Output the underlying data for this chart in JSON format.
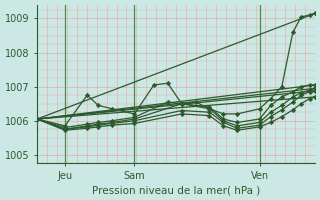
{
  "title": "Pression niveau de la mer( hPa )",
  "bg_color": "#cce8e4",
  "line_color": "#2d5a2d",
  "grid_color_major_v": "#4a8a4a",
  "grid_color_minor": "#e8a8a8",
  "ylim": [
    1004.75,
    1009.4
  ],
  "yticks": [
    1005,
    1006,
    1007,
    1008,
    1009
  ],
  "xlim": [
    0,
    1
  ],
  "xtick_positions": [
    0.1,
    0.35,
    0.8
  ],
  "xtick_labels": [
    "Jeu",
    "Sam",
    "Ven"
  ],
  "vline_positions": [
    0.1,
    0.35,
    0.8
  ],
  "lines": [
    {
      "x": [
        0.0,
        0.1,
        0.18,
        0.22,
        0.27,
        0.35,
        0.42,
        0.47,
        0.52,
        0.57,
        0.62,
        0.67,
        0.72,
        0.8,
        0.84,
        0.88,
        0.92,
        0.95,
        0.98,
        1.0
      ],
      "y": [
        1006.05,
        1005.85,
        1006.75,
        1006.45,
        1006.35,
        1006.2,
        1007.05,
        1007.1,
        1006.5,
        1006.55,
        1006.35,
        1006.2,
        1006.2,
        1006.35,
        1006.65,
        1007.0,
        1008.6,
        1009.05,
        1009.1,
        1009.15
      ]
    },
    {
      "x": [
        0.0,
        0.1,
        0.18,
        0.22,
        0.27,
        0.35,
        0.52,
        0.62,
        0.67,
        0.72,
        0.8,
        0.84,
        0.88,
        0.92,
        0.95,
        0.98,
        1.0
      ],
      "y": [
        1006.05,
        1005.75,
        1005.85,
        1005.9,
        1005.95,
        1006.05,
        1006.5,
        1006.4,
        1006.05,
        1005.95,
        1006.05,
        1006.45,
        1006.7,
        1006.85,
        1007.0,
        1007.05,
        1007.05
      ]
    },
    {
      "x": [
        0.0,
        0.1,
        0.18,
        0.22,
        0.27,
        0.35,
        0.47,
        0.52,
        0.62,
        0.67,
        0.72,
        0.8,
        0.84,
        0.88,
        0.92,
        0.95,
        0.98,
        1.0
      ],
      "y": [
        1006.05,
        1005.8,
        1005.9,
        1005.95,
        1006.0,
        1006.1,
        1006.55,
        1006.5,
        1006.35,
        1006.0,
        1005.85,
        1005.95,
        1006.25,
        1006.45,
        1006.7,
        1006.82,
        1006.9,
        1006.95
      ]
    },
    {
      "x": [
        0.0,
        0.1,
        0.18,
        0.22,
        0.27,
        0.35,
        0.52,
        0.62,
        0.67,
        0.72,
        0.8,
        0.84,
        0.88,
        0.92,
        0.95,
        0.98,
        1.0
      ],
      "y": [
        1006.05,
        1005.75,
        1005.82,
        1005.87,
        1005.92,
        1006.0,
        1006.3,
        1006.25,
        1005.95,
        1005.78,
        1005.87,
        1006.12,
        1006.32,
        1006.55,
        1006.75,
        1006.85,
        1006.88
      ]
    },
    {
      "x": [
        0.0,
        0.1,
        0.18,
        0.22,
        0.27,
        0.35,
        0.52,
        0.62,
        0.67,
        0.72,
        0.8,
        0.84,
        0.88,
        0.92,
        0.95,
        0.98,
        1.0
      ],
      "y": [
        1006.05,
        1005.72,
        1005.78,
        1005.82,
        1005.87,
        1005.92,
        1006.2,
        1006.15,
        1005.85,
        1005.72,
        1005.82,
        1005.95,
        1006.12,
        1006.32,
        1006.5,
        1006.65,
        1006.7
      ]
    },
    {
      "x": [
        0.0,
        1.0
      ],
      "y": [
        1006.05,
        1009.15
      ],
      "no_marker": true
    },
    {
      "x": [
        0.0,
        1.0
      ],
      "y": [
        1006.05,
        1007.05
      ],
      "no_marker": true
    },
    {
      "x": [
        0.0,
        1.0
      ],
      "y": [
        1006.05,
        1006.95
      ],
      "no_marker": true
    },
    {
      "x": [
        0.0,
        1.0
      ],
      "y": [
        1006.05,
        1006.88
      ],
      "no_marker": true
    },
    {
      "x": [
        0.0,
        1.0
      ],
      "y": [
        1006.05,
        1006.7
      ],
      "no_marker": true
    }
  ],
  "marker": "D",
  "markersize": 2.2,
  "linewidth": 0.9
}
